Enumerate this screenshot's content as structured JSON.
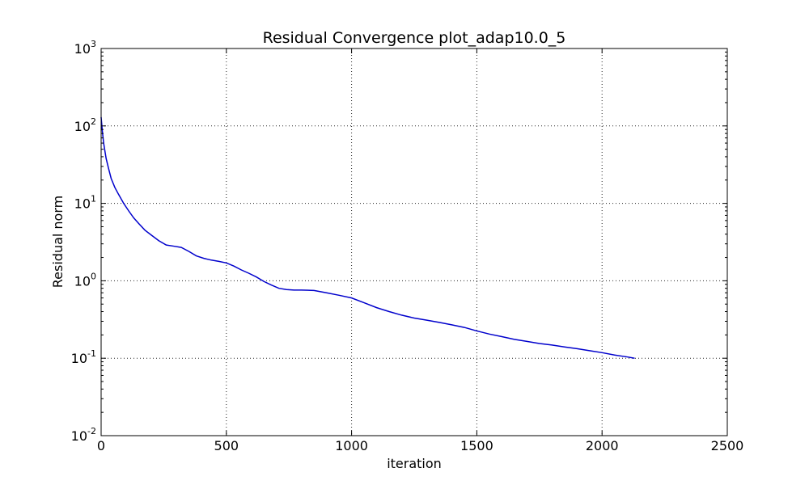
{
  "chart_data": {
    "type": "line",
    "title": "Residual Convergence plot_adap10.0_5",
    "xlabel": "iteration",
    "ylabel": "Residual norm",
    "xlim": [
      0,
      2500
    ],
    "ylim": [
      0.01,
      1000
    ],
    "yscale": "log",
    "grid": true,
    "x_ticks": [
      {
        "value": 0,
        "label": "0"
      },
      {
        "value": 500,
        "label": "500"
      },
      {
        "value": 1000,
        "label": "1000"
      },
      {
        "value": 1500,
        "label": "1500"
      },
      {
        "value": 2000,
        "label": "2000"
      },
      {
        "value": 2500,
        "label": "2500"
      }
    ],
    "y_ticks": [
      {
        "value": 0.01,
        "base": "10",
        "exp": "-2"
      },
      {
        "value": 0.1,
        "base": "10",
        "exp": "-1"
      },
      {
        "value": 1,
        "base": "10",
        "exp": "0"
      },
      {
        "value": 10,
        "base": "10",
        "exp": "1"
      },
      {
        "value": 100,
        "base": "10",
        "exp": "2"
      },
      {
        "value": 1000,
        "base": "10",
        "exp": "3"
      }
    ],
    "series": [
      {
        "color": "#0000cc",
        "x": [
          0,
          5,
          10,
          20,
          30,
          40,
          55,
          70,
          90,
          110,
          130,
          150,
          175,
          200,
          230,
          260,
          290,
          320,
          350,
          380,
          410,
          440,
          470,
          500,
          530,
          560,
          590,
          620,
          650,
          680,
          710,
          740,
          770,
          800,
          850,
          900,
          950,
          1000,
          1050,
          1100,
          1150,
          1200,
          1250,
          1300,
          1350,
          1400,
          1450,
          1500,
          1550,
          1600,
          1650,
          1700,
          1750,
          1800,
          1850,
          1900,
          1950,
          2000,
          2050,
          2100,
          2130
        ],
        "y": [
          130,
          85,
          60,
          38,
          28,
          21,
          16,
          13,
          10,
          8,
          6.5,
          5.5,
          4.5,
          3.9,
          3.3,
          2.9,
          2.8,
          2.7,
          2.4,
          2.1,
          1.95,
          1.85,
          1.78,
          1.7,
          1.55,
          1.38,
          1.25,
          1.12,
          0.98,
          0.88,
          0.8,
          0.77,
          0.76,
          0.76,
          0.75,
          0.7,
          0.65,
          0.6,
          0.52,
          0.45,
          0.4,
          0.36,
          0.33,
          0.31,
          0.29,
          0.27,
          0.25,
          0.225,
          0.205,
          0.19,
          0.175,
          0.165,
          0.155,
          0.148,
          0.14,
          0.133,
          0.125,
          0.118,
          0.11,
          0.104,
          0.1
        ]
      }
    ]
  }
}
